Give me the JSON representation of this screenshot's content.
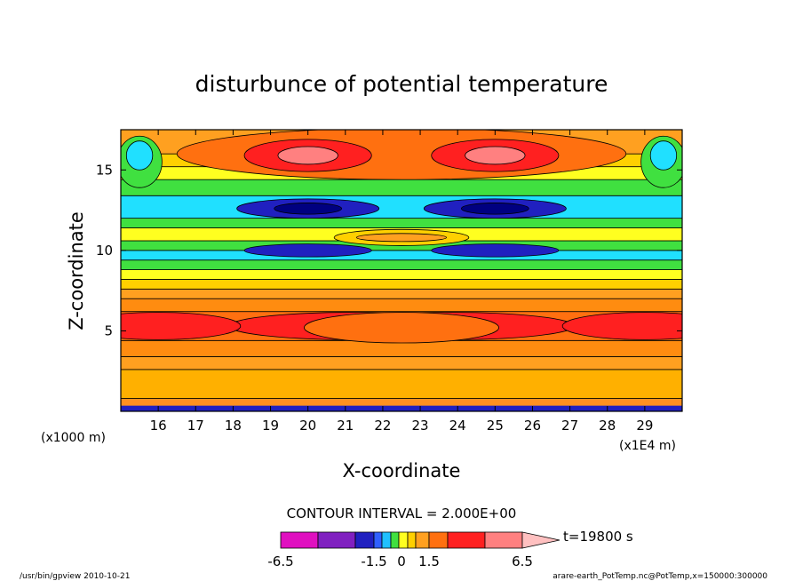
{
  "chart_data": {
    "type": "heatmap",
    "title": "disturbunce of potential temperature",
    "xlabel": "X-coordinate",
    "ylabel": "Z-coordinate",
    "x_unit": "(x1E4 m)",
    "y_unit": "(x1000 m)",
    "xlim": [
      15,
      30
    ],
    "ylim": [
      0,
      17.5
    ],
    "x_ticks": [
      16,
      17,
      18,
      19,
      20,
      21,
      22,
      23,
      24,
      25,
      26,
      27,
      28,
      29
    ],
    "y_ticks": [
      5,
      10,
      15
    ],
    "contour_interval": "CONTOUR INTERVAL = 2.000E+00",
    "time_label": "t=19800 s",
    "colorbar": {
      "tick_labels": [
        "-6.5",
        "-1.5",
        "0",
        "1.5",
        "6.5"
      ],
      "colors": [
        "#e010c0",
        "#8020c0",
        "#2020c0",
        "#3060ff",
        "#20c0ff",
        "#40e040",
        "#ffff20",
        "#ffd000",
        "#ffa020",
        "#ff7010",
        "#ff2020",
        "#ff8080",
        "#ffc0c0"
      ]
    },
    "bands_z": [
      {
        "z0": 0.0,
        "z1": 0.8,
        "color": "#ff9020"
      },
      {
        "z0": 0.8,
        "z1": 2.6,
        "color": "#ffb000"
      },
      {
        "z0": 2.6,
        "z1": 3.4,
        "color": "#ffa020"
      },
      {
        "z0": 3.4,
        "z1": 4.4,
        "color": "#ff8c10"
      },
      {
        "z0": 4.4,
        "z1": 6.2,
        "color": "#ff7010"
      },
      {
        "z0": 6.2,
        "z1": 7.0,
        "color": "#ff8c10"
      },
      {
        "z0": 7.0,
        "z1": 7.6,
        "color": "#ffa020"
      },
      {
        "z0": 7.6,
        "z1": 8.2,
        "color": "#ffd000"
      },
      {
        "z0": 8.2,
        "z1": 8.8,
        "color": "#ffff20"
      },
      {
        "z0": 8.8,
        "z1": 9.4,
        "color": "#40e040"
      },
      {
        "z0": 9.4,
        "z1": 10.0,
        "color": "#20e0ff"
      },
      {
        "z0": 10.0,
        "z1": 10.6,
        "color": "#40e040"
      },
      {
        "z0": 10.6,
        "z1": 11.4,
        "color": "#ffff20"
      },
      {
        "z0": 11.4,
        "z1": 12.0,
        "color": "#40e040"
      },
      {
        "z0": 12.0,
        "z1": 13.4,
        "color": "#20e0ff"
      },
      {
        "z0": 13.4,
        "z1": 14.4,
        "color": "#40e040"
      },
      {
        "z0": 14.4,
        "z1": 15.2,
        "color": "#ffff20"
      },
      {
        "z0": 15.2,
        "z1": 16.0,
        "color": "#ffd000"
      },
      {
        "z0": 16.0,
        "z1": 17.5,
        "color": "#ffa020"
      }
    ],
    "blobs": [
      {
        "x": 21.2,
        "z": 5.3,
        "rx": 3.3,
        "rz": 0.85,
        "color": "#ff2020"
      },
      {
        "x": 23.8,
        "z": 5.3,
        "rx": 3.3,
        "rz": 0.85,
        "color": "#ff2020"
      },
      {
        "x": 16.0,
        "z": 5.3,
        "rx": 2.2,
        "rz": 0.85,
        "color": "#ff2020"
      },
      {
        "x": 29.0,
        "z": 5.3,
        "rx": 2.2,
        "rz": 0.85,
        "color": "#ff2020"
      },
      {
        "x": 22.5,
        "z": 5.2,
        "rx": 2.6,
        "rz": 0.95,
        "color": "#ff7010"
      },
      {
        "x": 20.0,
        "z": 10.0,
        "rx": 1.7,
        "rz": 0.4,
        "color": "#2020c0"
      },
      {
        "x": 25.0,
        "z": 10.0,
        "rx": 1.7,
        "rz": 0.4,
        "color": "#2020c0"
      },
      {
        "x": 22.5,
        "z": 10.8,
        "rx": 1.8,
        "rz": 0.5,
        "color": "#ffd000"
      },
      {
        "x": 22.5,
        "z": 10.8,
        "rx": 1.2,
        "rz": 0.25,
        "color": "#ffa020"
      },
      {
        "x": 20.0,
        "z": 12.6,
        "rx": 1.9,
        "rz": 0.6,
        "color": "#2020c0"
      },
      {
        "x": 25.0,
        "z": 12.6,
        "rx": 1.9,
        "rz": 0.6,
        "color": "#2020c0"
      },
      {
        "x": 20.0,
        "z": 12.6,
        "rx": 0.9,
        "rz": 0.35,
        "color": "#000080"
      },
      {
        "x": 25.0,
        "z": 12.6,
        "rx": 0.9,
        "rz": 0.35,
        "color": "#000080"
      },
      {
        "x": 22.5,
        "z": 16.0,
        "rx": 6.0,
        "rz": 1.6,
        "color": "#ff7010"
      },
      {
        "x": 20.0,
        "z": 15.9,
        "rx": 1.7,
        "rz": 1.0,
        "color": "#ff2020"
      },
      {
        "x": 25.0,
        "z": 15.9,
        "rx": 1.7,
        "rz": 1.0,
        "color": "#ff2020"
      },
      {
        "x": 20.0,
        "z": 15.9,
        "rx": 0.8,
        "rz": 0.55,
        "color": "#ff8080"
      },
      {
        "x": 25.0,
        "z": 15.9,
        "rx": 0.8,
        "rz": 0.55,
        "color": "#ff8080"
      },
      {
        "x": 15.5,
        "z": 15.5,
        "rx": 0.6,
        "rz": 1.6,
        "color": "#40e040"
      },
      {
        "x": 29.5,
        "z": 15.5,
        "rx": 0.6,
        "rz": 1.6,
        "color": "#40e040"
      },
      {
        "x": 15.5,
        "z": 15.9,
        "rx": 0.35,
        "rz": 0.9,
        "color": "#20e0ff"
      },
      {
        "x": 29.5,
        "z": 15.9,
        "rx": 0.35,
        "rz": 0.9,
        "color": "#20e0ff"
      }
    ],
    "footer_left": "/usr/bin/gpview   2010-10-21",
    "footer_right": "arare-earth_PotTemp.nc@PotTemp,x=150000:300000"
  }
}
